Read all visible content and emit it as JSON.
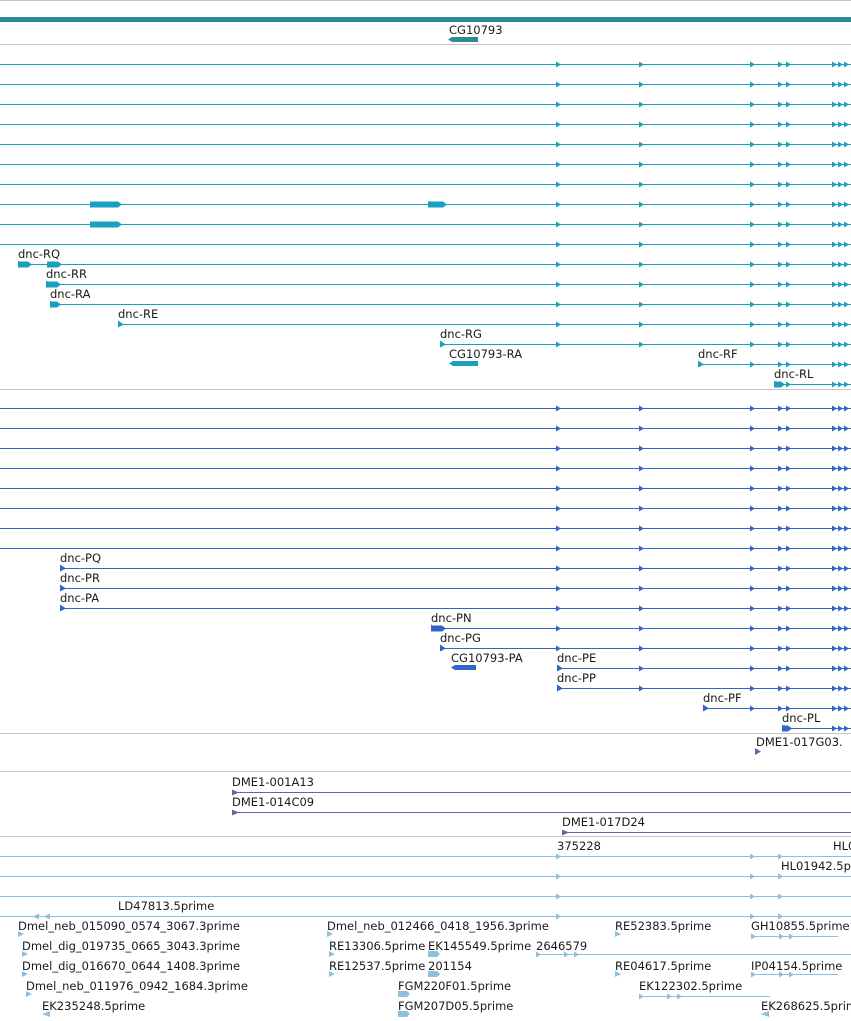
{
  "colors": {
    "gene": "#2a8c94",
    "flybase_transcript": "#1aa0bf",
    "refseq_transcript": "#2f66c8",
    "bac": "#7a5aa8",
    "est": "#8cc0dc",
    "separator": "#c6c6c6",
    "label": "#1a1a1a"
  },
  "gene_track": {
    "label": "CG10793"
  },
  "flybase_transcripts": [
    {
      "label": "",
      "start": 0,
      "thick": []
    },
    {
      "label": "",
      "start": 0,
      "thick": []
    },
    {
      "label": "",
      "start": 0,
      "thick": []
    },
    {
      "label": "",
      "start": 0,
      "thick": []
    },
    {
      "label": "",
      "start": 0,
      "thick": []
    },
    {
      "label": "",
      "start": 0,
      "thick": []
    },
    {
      "label": "",
      "start": 0,
      "thick": []
    },
    {
      "label": "",
      "start": 0,
      "thick": [
        [
          90,
          122
        ],
        [
          428,
          447
        ]
      ]
    },
    {
      "label": "",
      "start": 0,
      "thick": [
        [
          90,
          122
        ]
      ]
    },
    {
      "label": "",
      "start": 0,
      "thick": []
    },
    {
      "label": "dnc-RQ",
      "start": 18,
      "thick": [
        [
          18,
          32
        ],
        [
          47,
          62
        ]
      ]
    },
    {
      "label": "dnc-RR",
      "start": 46,
      "thick": [
        [
          46,
          61
        ]
      ]
    },
    {
      "label": "dnc-RA",
      "start": 50,
      "thick": [
        [
          50,
          61
        ]
      ]
    },
    {
      "label": "dnc-RE",
      "start": 118,
      "thick": []
    },
    {
      "label": "dnc-RG",
      "start": 440,
      "thick": []
    },
    {
      "label": "dnc-RF",
      "start": 698,
      "thick": []
    },
    {
      "label": "dnc-RL",
      "start": 774,
      "thick": [
        [
          774,
          785
        ]
      ]
    }
  ],
  "flybase_cg_transcript": {
    "label": "CG10793-RA"
  },
  "refseq_transcripts": [
    {
      "label": "",
      "start": 0,
      "thick": []
    },
    {
      "label": "",
      "start": 0,
      "thick": []
    },
    {
      "label": "",
      "start": 0,
      "thick": []
    },
    {
      "label": "",
      "start": 0,
      "thick": []
    },
    {
      "label": "",
      "start": 0,
      "thick": []
    },
    {
      "label": "",
      "start": 0,
      "thick": []
    },
    {
      "label": "",
      "start": 0,
      "thick": []
    },
    {
      "label": "",
      "start": 0,
      "thick": []
    },
    {
      "label": "dnc-PQ",
      "start": 60,
      "thick": []
    },
    {
      "label": "dnc-PR",
      "start": 60,
      "thick": []
    },
    {
      "label": "dnc-PA",
      "start": 60,
      "thick": []
    },
    {
      "label": "dnc-PN",
      "start": 431,
      "thick": [
        [
          431,
          446
        ]
      ]
    },
    {
      "label": "dnc-PG",
      "start": 440,
      "thick": []
    },
    {
      "label": "dnc-PE",
      "start": 557,
      "thick": []
    },
    {
      "label": "dnc-PP",
      "start": 557,
      "thick": []
    },
    {
      "label": "dnc-PF",
      "start": 703,
      "thick": []
    },
    {
      "label": "dnc-PL",
      "start": 782,
      "thick": [
        [
          782,
          792
        ]
      ]
    }
  ],
  "refseq_cg_transcript": {
    "label": "CG10793-PA"
  },
  "bac_clones": [
    {
      "label": "DME1-017G03.",
      "start": 755
    },
    {
      "label": "DME1-001A13",
      "start": 232
    },
    {
      "label": "DME1-014C09",
      "start": 232
    },
    {
      "label": "DME1-017D24",
      "start": 562
    }
  ],
  "est_alignments": [
    "375228",
    "HL0",
    "HL01942.5p",
    "LD47813.5prime",
    "Dmel_neb_015090_0574_3067.3prime",
    "Dmel_neb_012466_0418_1956.3prime",
    "RE52383.5prime",
    "GH10855.5prime",
    "Dmel_dig_019735_0665_3043.3prime",
    "RE13306.5prime",
    "EK145549.5prime",
    "2646579",
    "Dmel_dig_016670_0644_1408.3prime",
    "RE12537.5prime",
    "201154",
    "RE04617.5prime",
    "IP04154.5prime",
    "Dmel_neb_011976_0942_1684.3prime",
    "FGM220F01.5prime",
    "EK122302.5prime",
    "EK235248.5prime",
    "FGM207D05.5prime",
    "EK268625.5prime"
  ]
}
